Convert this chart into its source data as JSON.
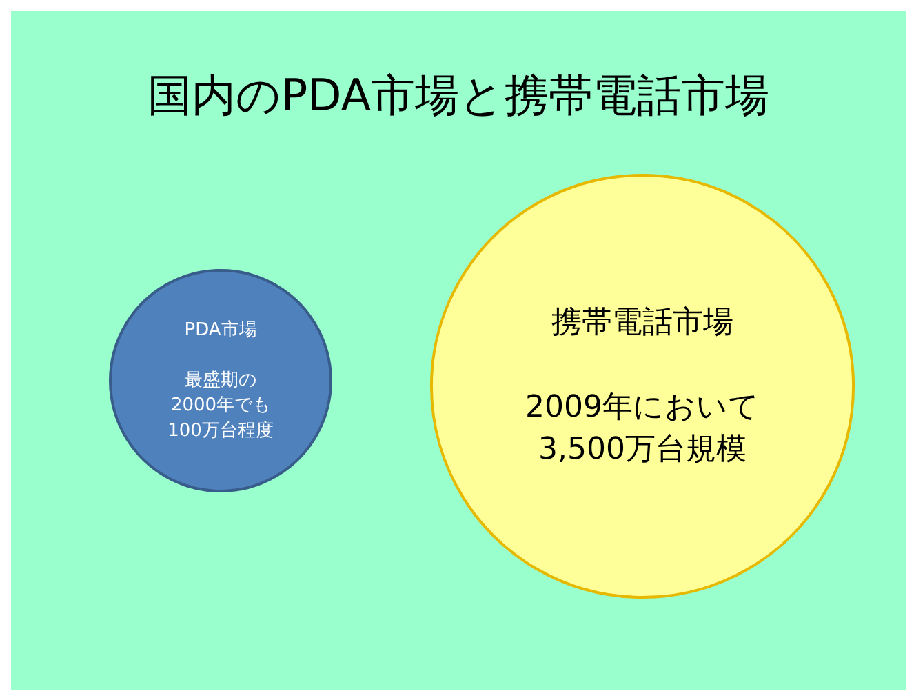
{
  "chart_data": {
    "type": "other",
    "title": "国内のPDA市場と携帯電話市場",
    "categories": [
      "PDA市場",
      "携帯電話市場"
    ],
    "values": [
      100,
      3500
    ],
    "value_labels": [
      "最盛期の\n2000年でも\n100万台程度",
      "2009年において\n3,500万台規模"
    ],
    "colors": [
      "#4f81bd",
      "#ffff99"
    ]
  }
}
